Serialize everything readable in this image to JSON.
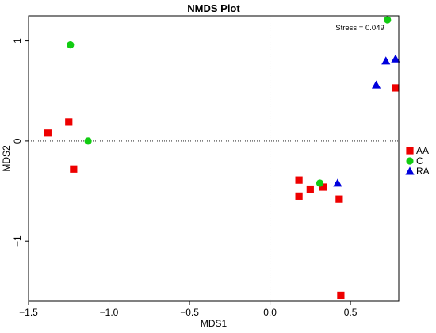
{
  "chart_data": {
    "type": "scatter",
    "title": "NMDS Plot",
    "xlabel": "MDS1",
    "ylabel": "MDS2",
    "xlim": [
      -1.5,
      0.8
    ],
    "ylim": [
      -1.6,
      1.25
    ],
    "x_ticks": [
      -1.5,
      -1.0,
      -0.5,
      0.0,
      0.5
    ],
    "x_tick_labels": [
      "−1.5",
      "−1.0",
      "−0.5",
      "0.0",
      "0.5"
    ],
    "y_ticks": [
      -1,
      0,
      1
    ],
    "y_tick_labels": [
      "−1",
      "0",
      "1"
    ],
    "reference_lines": {
      "x": 0,
      "y": 0,
      "style": "dotted"
    },
    "annotation": "Stress = 0.049",
    "legend": {
      "placement": "right"
    },
    "series": [
      {
        "name": "AA",
        "marker": "square",
        "color": "#ee0000",
        "points": [
          {
            "x": -1.38,
            "y": 0.08
          },
          {
            "x": -1.25,
            "y": 0.19
          },
          {
            "x": -1.22,
            "y": -0.28
          },
          {
            "x": 0.18,
            "y": -0.39
          },
          {
            "x": 0.18,
            "y": -0.55
          },
          {
            "x": 0.25,
            "y": -0.48
          },
          {
            "x": 0.33,
            "y": -0.46
          },
          {
            "x": 0.43,
            "y": -0.58
          },
          {
            "x": 0.44,
            "y": -1.54
          },
          {
            "x": 0.78,
            "y": 0.53
          }
        ]
      },
      {
        "name": "C",
        "marker": "circle",
        "color": "#11cc11",
        "points": [
          {
            "x": -1.24,
            "y": 0.96
          },
          {
            "x": -1.13,
            "y": 0.0
          },
          {
            "x": 0.31,
            "y": -0.42
          },
          {
            "x": 0.73,
            "y": 1.21
          }
        ]
      },
      {
        "name": "RA",
        "marker": "triangle",
        "color": "#0000dd",
        "points": [
          {
            "x": 0.42,
            "y": -0.42
          },
          {
            "x": 0.66,
            "y": 0.56
          },
          {
            "x": 0.72,
            "y": 0.8
          },
          {
            "x": 0.78,
            "y": 0.82
          }
        ]
      }
    ]
  }
}
